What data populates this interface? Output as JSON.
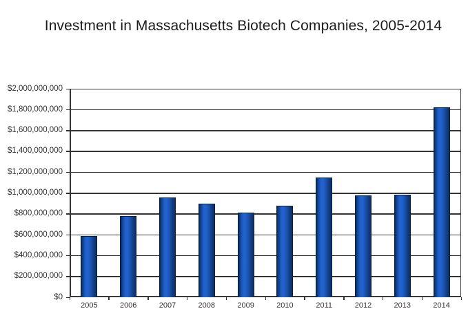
{
  "chart_data": {
    "type": "bar",
    "title": "Investment in Massachusetts Biotech Companies, 2005-2014",
    "categories": [
      "2005",
      "2006",
      "2007",
      "2008",
      "2009",
      "2010",
      "2011",
      "2012",
      "2013",
      "2014"
    ],
    "values": [
      590000000,
      780000000,
      955000000,
      900000000,
      815000000,
      880000000,
      1150000000,
      980000000,
      985000000,
      1820000000
    ],
    "xlabel": "",
    "ylabel": "",
    "ylim": [
      0,
      2000000000
    ],
    "ytick_step": 200000000,
    "ytick_labels": [
      "$0",
      "$200,000,000",
      "$400,000,000",
      "$600,000,000",
      "$800,000,000",
      "$1,000,000,000",
      "$1,200,000,000",
      "$1,400,000,000",
      "$1,600,000,000",
      "$1,800,000,000",
      "$2,000,000,000"
    ],
    "grid": "horizontal",
    "legend": "none",
    "colors": {
      "bar_fill_main": "#2263d0",
      "bar_fill_dark": "#0a2a55",
      "bar_outline": "#07203f",
      "gridline": "#454545",
      "axis": "#3a3a3a",
      "text": "#333333",
      "title_text": "#1d1d1d",
      "background": "#ffffff"
    }
  }
}
